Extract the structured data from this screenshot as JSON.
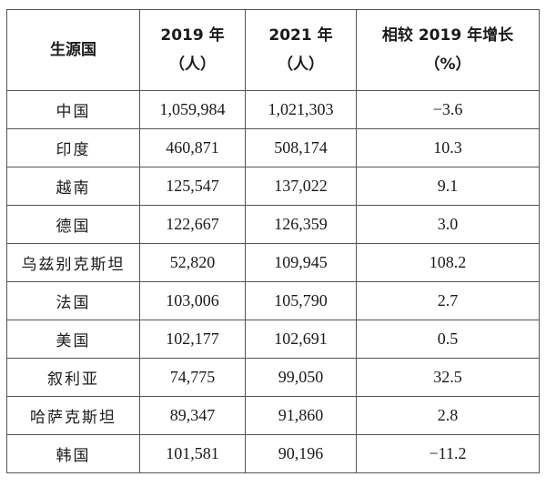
{
  "table": {
    "headers": [
      {
        "line1": "生源国",
        "line2": ""
      },
      {
        "line1": "2019 年",
        "line2": "（人）"
      },
      {
        "line1": "2021 年",
        "line2": "（人）"
      },
      {
        "line1": "相较 2019 年增长",
        "line2": "（%）"
      }
    ],
    "rows": [
      [
        "中国",
        "1,059,984",
        "1,021,303",
        "−3.6"
      ],
      [
        "印度",
        "460,871",
        "508,174",
        "10.3"
      ],
      [
        "越南",
        "125,547",
        "137,022",
        "9.1"
      ],
      [
        "德国",
        "122,667",
        "126,359",
        "3.0"
      ],
      [
        "乌兹别克斯坦",
        "52,820",
        "109,945",
        "108.2"
      ],
      [
        "法国",
        "103,006",
        "105,790",
        "2.7"
      ],
      [
        "美国",
        "102,177",
        "102,691",
        "0.5"
      ],
      [
        "叙利亚",
        "74,775",
        "99,050",
        "32.5"
      ],
      [
        "哈萨克斯坦",
        "89,347",
        "91,860",
        "2.8"
      ],
      [
        "韩国",
        "101,581",
        "90,196",
        "−11.2"
      ]
    ]
  }
}
